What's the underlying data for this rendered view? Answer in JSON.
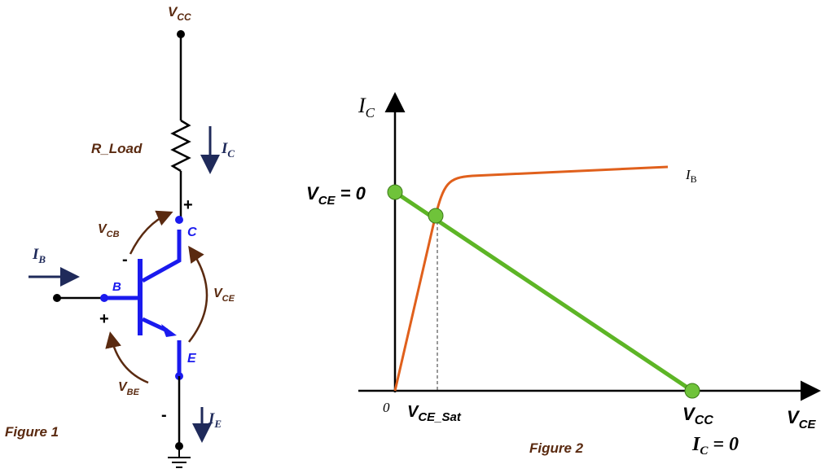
{
  "figure1": {
    "caption": "Figure 1",
    "supply": {
      "main": "V",
      "sub": "CC"
    },
    "load": "R_Load",
    "collector_current": {
      "main": "I",
      "sub": "C"
    },
    "base_current": {
      "main": "I",
      "sub": "B"
    },
    "emitter_current": {
      "main": "I",
      "sub": "E"
    },
    "terminals": {
      "collector": "C",
      "base": "B",
      "emitter": "E"
    },
    "voltages": {
      "vcb": {
        "main": "V",
        "sub": "CB"
      },
      "vce": {
        "main": "V",
        "sub": "CE"
      },
      "vbe": {
        "main": "V",
        "sub": "BE"
      }
    },
    "polarity": {
      "collector_plus": "+",
      "base_minus": "-",
      "base_plus": "+",
      "emitter_minus": "-"
    }
  },
  "figure2": {
    "caption": "Figure 2",
    "y_axis": {
      "main": "I",
      "sub": "C"
    },
    "x_axis": {
      "main": "V",
      "sub": "CE"
    },
    "origin": "0",
    "curve_label": {
      "main": "I",
      "sub": "B"
    },
    "left_point": {
      "main": "V",
      "sub": "CE",
      "rest": " = 0"
    },
    "saturation": {
      "main": "V",
      "sub": "CE_Sat"
    },
    "cutoff_voltage": {
      "main": "V",
      "sub": "CC"
    },
    "cutoff_current": {
      "main": "I",
      "sub": "C",
      "rest": " = 0"
    }
  }
}
